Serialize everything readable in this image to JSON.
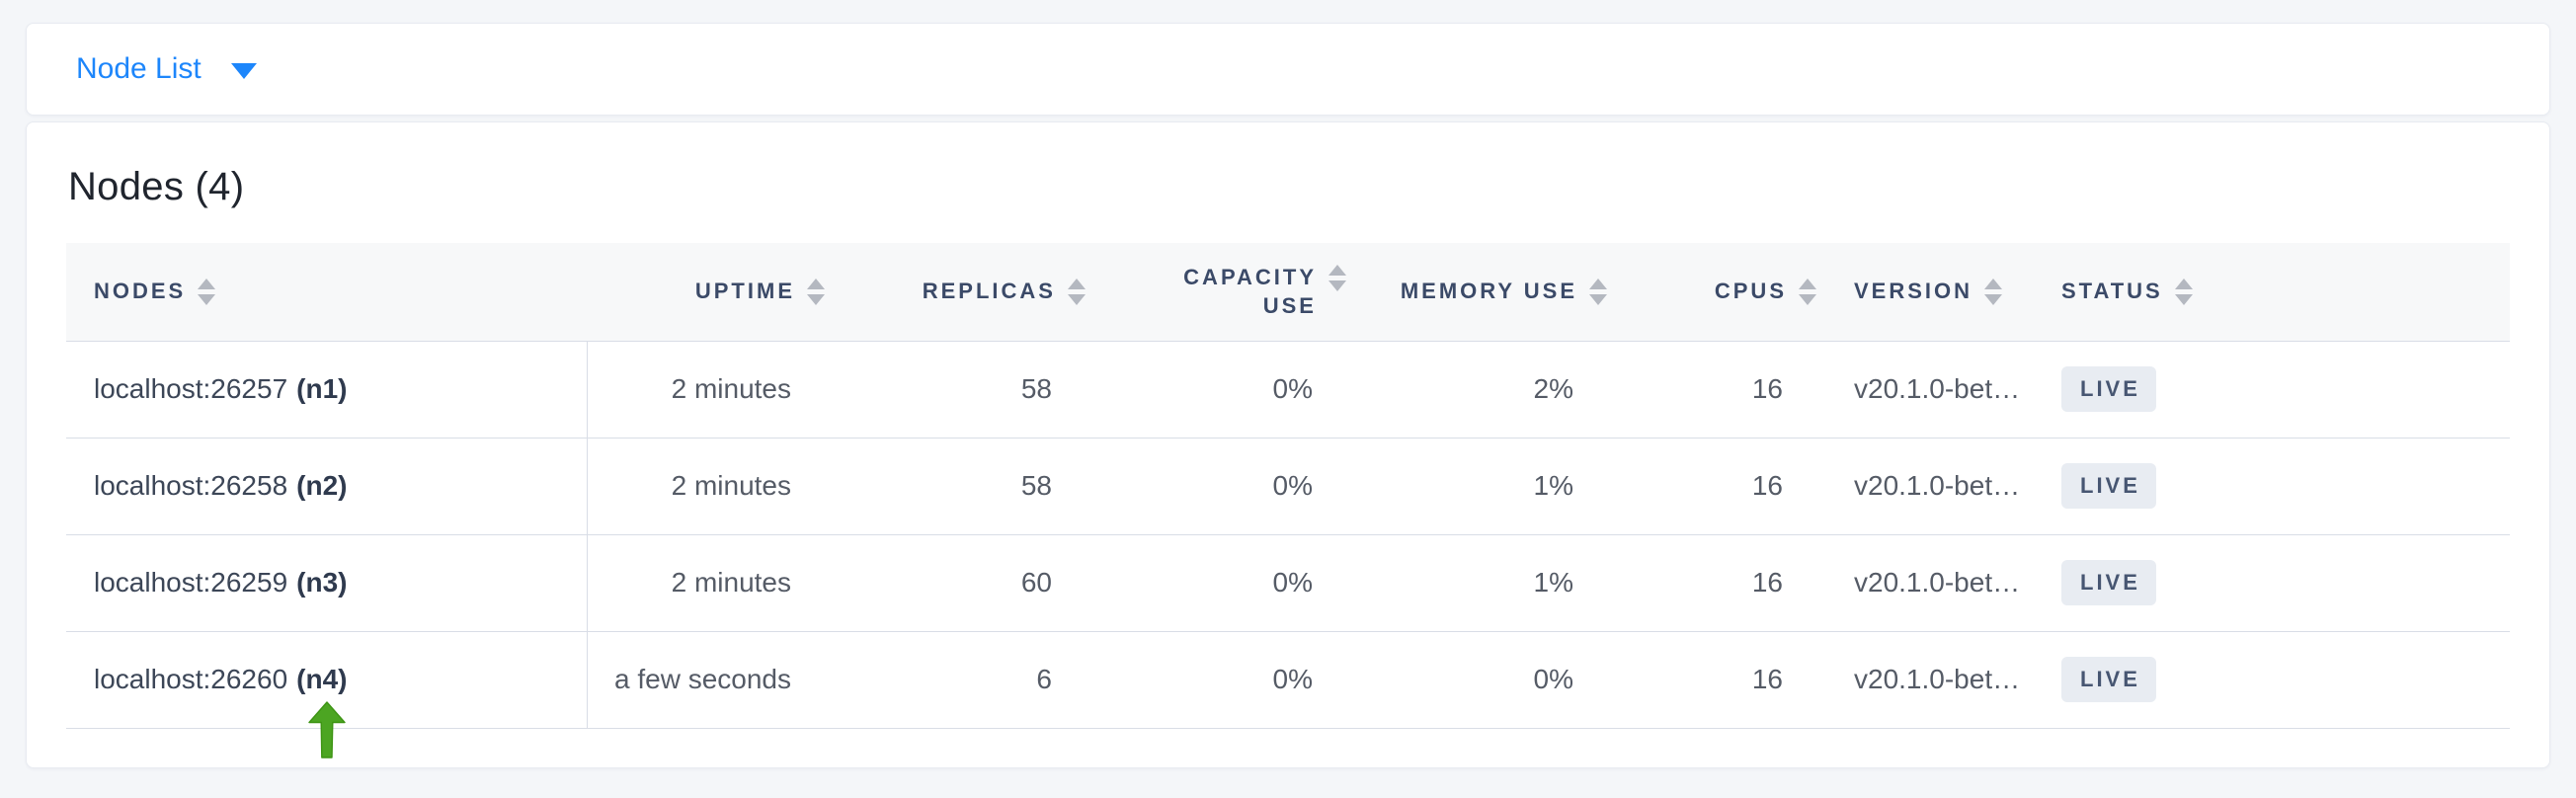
{
  "view_selector": {
    "label": "Node List"
  },
  "heading": "Nodes (4)",
  "table": {
    "columns": [
      {
        "key": "nodes",
        "label": "NODES"
      },
      {
        "key": "uptime",
        "label": "UPTIME"
      },
      {
        "key": "replicas",
        "label": "REPLICAS"
      },
      {
        "key": "capacity",
        "label": "CAPACITY USE"
      },
      {
        "key": "memory",
        "label": "MEMORY USE"
      },
      {
        "key": "cpus",
        "label": "CPUS"
      },
      {
        "key": "version",
        "label": "VERSION"
      },
      {
        "key": "status",
        "label": "STATUS"
      }
    ],
    "rows": [
      {
        "nodes_address": "localhost:26257",
        "nodes_id": "(n1)",
        "uptime": "2 minutes",
        "replicas": "58",
        "capacity": "0%",
        "memory": "2%",
        "cpus": "16",
        "version": "v20.1.0-bet…",
        "status": "LIVE"
      },
      {
        "nodes_address": "localhost:26258",
        "nodes_id": "(n2)",
        "uptime": "2 minutes",
        "replicas": "58",
        "capacity": "0%",
        "memory": "1%",
        "cpus": "16",
        "version": "v20.1.0-bet…",
        "status": "LIVE"
      },
      {
        "nodes_address": "localhost:26259",
        "nodes_id": "(n3)",
        "uptime": "2 minutes",
        "replicas": "60",
        "capacity": "0%",
        "memory": "1%",
        "cpus": "16",
        "version": "v20.1.0-bet…",
        "status": "LIVE"
      },
      {
        "nodes_address": "localhost:26260",
        "nodes_id": "(n4)",
        "uptime": "a few seconds",
        "replicas": "6",
        "capacity": "0%",
        "memory": "0%",
        "cpus": "16",
        "version": "v20.1.0-bet…",
        "status": "LIVE"
      }
    ]
  },
  "annotation": {
    "shape": "green-up-arrow",
    "points_at": "localhost:26260 (n4)"
  },
  "colors": {
    "accent_blue": "#1d86fb",
    "header_text": "#3b4a68",
    "badge_bg": "#e8ecf2",
    "badge_text": "#475672",
    "row_border": "#d9dde6",
    "page_bg": "#f4f6f9",
    "arrow_green": "#4ca522"
  }
}
